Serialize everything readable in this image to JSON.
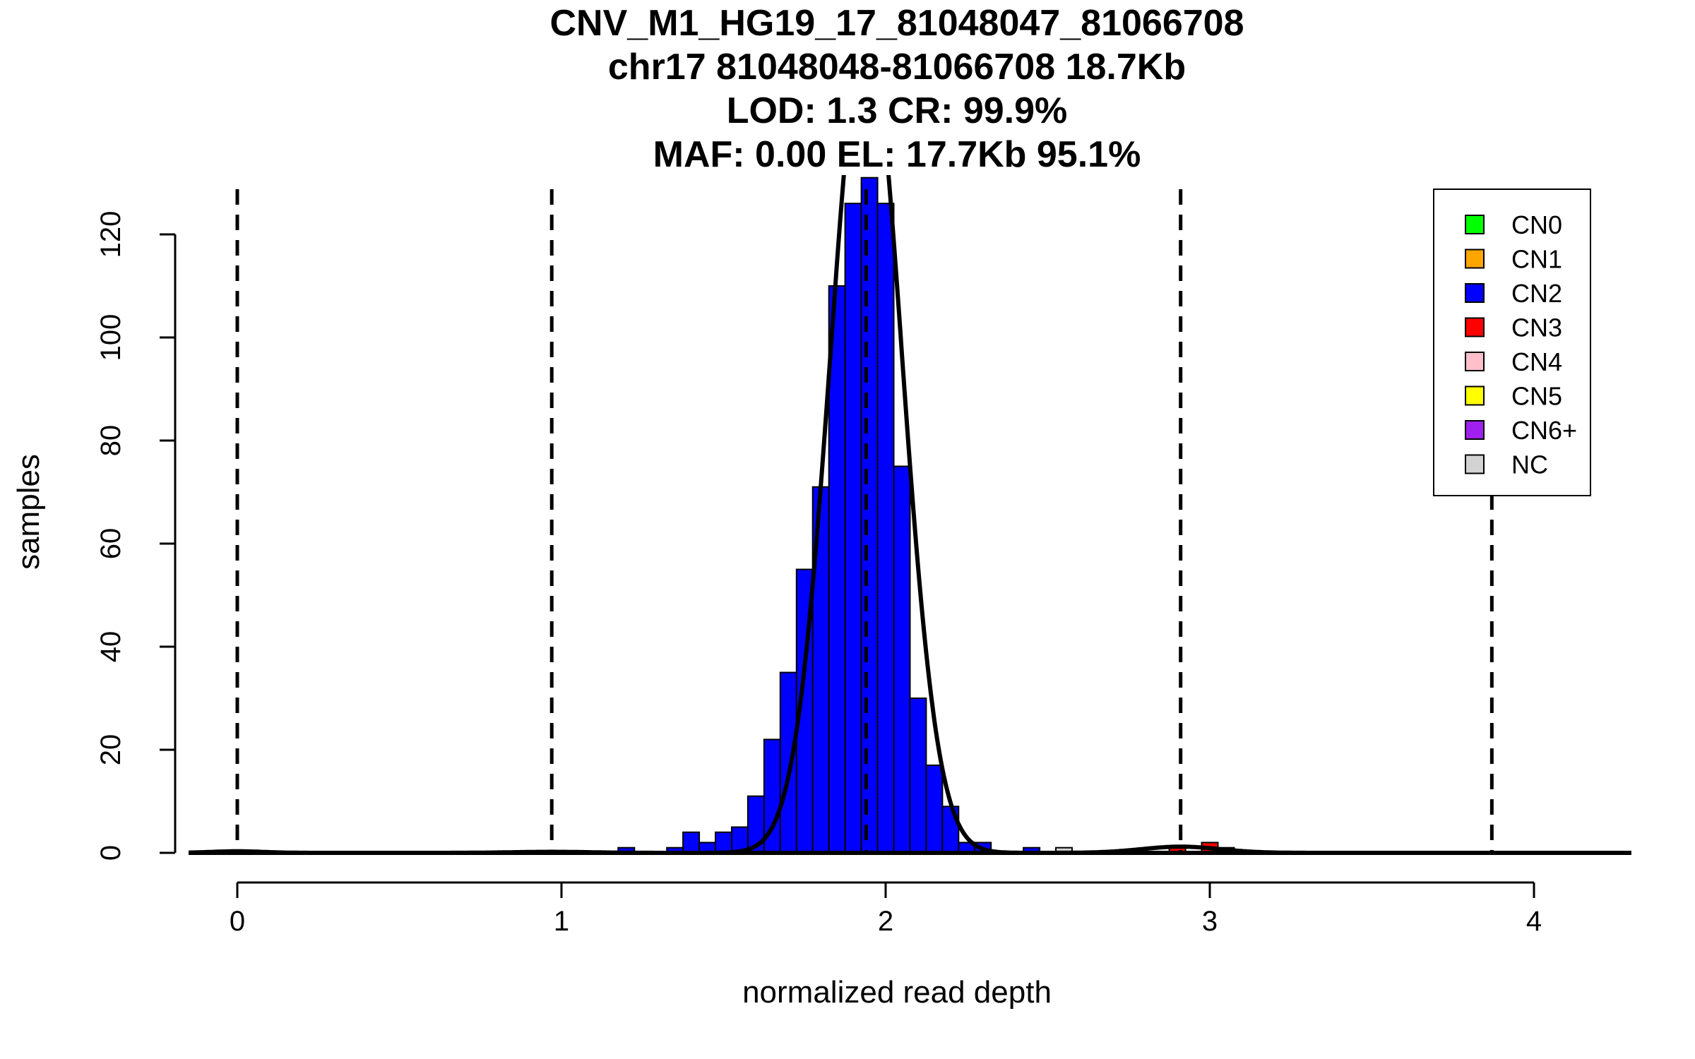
{
  "chart_data": {
    "type": "histogram",
    "title_lines": [
      "CNV_M1_HG19_17_81048047_81066708",
      "chr17 81048048-81066708 18.7Kb",
      "LOD: 1.3 CR: 99.9%",
      "MAF: 0.00 EL: 17.7Kb 95.1%"
    ],
    "xlabel": "normalized read depth",
    "ylabel": "samples",
    "xlim": [
      -0.15,
      4.3
    ],
    "ylim": [
      0,
      130
    ],
    "x_ticks": [
      0,
      1,
      2,
      3,
      4
    ],
    "x_tick_labels": [
      "0",
      "1",
      "2",
      "3",
      "4"
    ],
    "y_ticks": [
      0,
      20,
      40,
      60,
      80,
      100,
      120
    ],
    "y_tick_labels": [
      "0",
      "20",
      "40",
      "60",
      "80",
      "100",
      "120"
    ],
    "bin_width": 0.05,
    "bars": [
      {
        "x0": 1.175,
        "count": 1,
        "cn": "CN2"
      },
      {
        "x0": 1.325,
        "count": 1,
        "cn": "CN2"
      },
      {
        "x0": 1.375,
        "count": 4,
        "cn": "CN2"
      },
      {
        "x0": 1.425,
        "count": 2,
        "cn": "CN2"
      },
      {
        "x0": 1.475,
        "count": 4,
        "cn": "CN2"
      },
      {
        "x0": 1.525,
        "count": 5,
        "cn": "CN2"
      },
      {
        "x0": 1.575,
        "count": 11,
        "cn": "CN2"
      },
      {
        "x0": 1.625,
        "count": 22,
        "cn": "CN2"
      },
      {
        "x0": 1.675,
        "count": 35,
        "cn": "CN2"
      },
      {
        "x0": 1.725,
        "count": 55,
        "cn": "CN2"
      },
      {
        "x0": 1.775,
        "count": 71,
        "cn": "CN2"
      },
      {
        "x0": 1.825,
        "count": 110,
        "cn": "CN2"
      },
      {
        "x0": 1.875,
        "count": 126,
        "cn": "CN2"
      },
      {
        "x0": 1.925,
        "count": 131,
        "cn": "CN2"
      },
      {
        "x0": 1.975,
        "count": 126,
        "cn": "CN2"
      },
      {
        "x0": 2.025,
        "count": 75,
        "cn": "CN2"
      },
      {
        "x0": 2.075,
        "count": 30,
        "cn": "CN2"
      },
      {
        "x0": 2.125,
        "count": 17,
        "cn": "CN2"
      },
      {
        "x0": 2.175,
        "count": 9,
        "cn": "CN2"
      },
      {
        "x0": 2.225,
        "count": 2,
        "cn": "CN2"
      },
      {
        "x0": 2.275,
        "count": 2,
        "cn": "CN2"
      },
      {
        "x0": 2.425,
        "count": 1,
        "cn": "CN2"
      },
      {
        "x0": 2.525,
        "count": 1,
        "cn": "NC"
      },
      {
        "x0": 2.975,
        "count": 2,
        "cn": "CN3"
      },
      {
        "x0": 3.025,
        "count": 1,
        "cn": "CN3"
      },
      {
        "x0": 2.875,
        "count": 1,
        "cn": "CN3"
      }
    ],
    "fit_curves": [
      {
        "name": "CN2 fit",
        "mean": 1.94,
        "sd": 0.11,
        "peak": 160
      },
      {
        "name": "CN1 fit",
        "mean": 0.97,
        "sd": 0.12,
        "peak": 0.2
      },
      {
        "name": "CN3 fit",
        "mean": 2.91,
        "sd": 0.12,
        "peak": 1.2
      },
      {
        "name": "CN0 fit",
        "mean": 0.0,
        "sd": 0.08,
        "peak": 0.3
      }
    ],
    "dashed_lines_x": [
      0.0,
      0.97,
      1.94,
      2.91,
      3.87
    ],
    "legend": {
      "position": "top-right",
      "items": [
        {
          "label": "CN0",
          "color": "#00ff00"
        },
        {
          "label": "CN1",
          "color": "#ffa500"
        },
        {
          "label": "CN2",
          "color": "#0000ff"
        },
        {
          "label": "CN3",
          "color": "#ff0000"
        },
        {
          "label": "CN4",
          "color": "#ffc0cb"
        },
        {
          "label": "CN5",
          "color": "#ffff00"
        },
        {
          "label": "CN6+",
          "color": "#a020f0"
        },
        {
          "label": "NC",
          "color": "#d3d3d3"
        }
      ]
    }
  }
}
